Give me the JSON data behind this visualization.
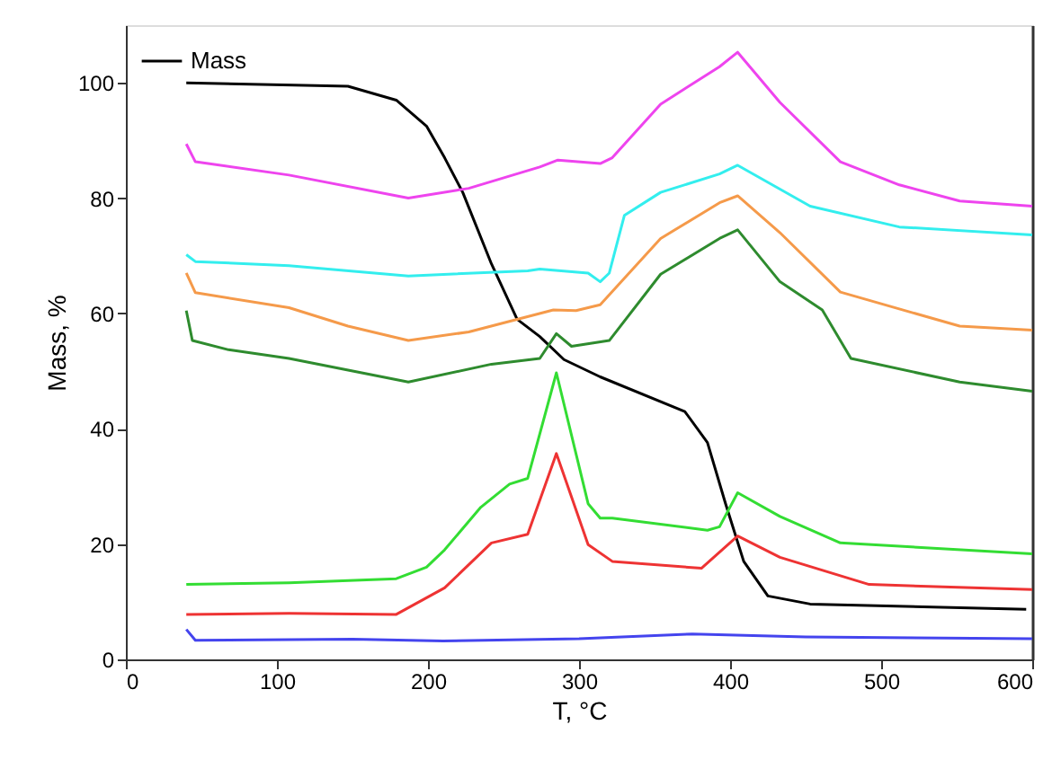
{
  "chart_data": {
    "type": "line",
    "xlabel": "T, °C",
    "ylabel": "Mass, %",
    "xlim": [
      0,
      600
    ],
    "xticks": [
      0,
      100,
      200,
      300,
      400,
      500,
      600
    ],
    "ylim": [
      0,
      110
    ],
    "yticks": [
      0,
      20,
      40,
      60,
      80,
      100
    ],
    "grid": false,
    "legend": "top left",
    "marker": "none",
    "line_style": "solid",
    "series": [
      {
        "name": "Mass",
        "color": "#000000",
        "x": [
          40,
          147,
          179,
          199,
          211,
          223,
          242,
          259,
          274,
          290,
          314,
          370,
          385,
          397,
          409,
          425,
          453,
          596
        ],
        "values": [
          100,
          99.4,
          97,
          92.5,
          87,
          81,
          68.6,
          59,
          56,
          52,
          49,
          43,
          37.6,
          27,
          17,
          11,
          9.6,
          8.7
        ]
      },
      {
        "color": "#ee44ee",
        "x": [
          40,
          46,
          108,
          187,
          227,
          274,
          286,
          314,
          322,
          354,
          393,
          405,
          433,
          473,
          512,
          552,
          600
        ],
        "values": [
          89.4,
          86.3,
          84,
          80,
          81.7,
          85.4,
          86.6,
          86,
          87,
          96.3,
          102.8,
          105.3,
          96.6,
          86.3,
          82.3,
          79.5,
          78.6
        ]
      },
      {
        "color": "#33eeee",
        "x": [
          40,
          46,
          108,
          187,
          266,
          274,
          306,
          314,
          320,
          330,
          354,
          393,
          405,
          453,
          512,
          600
        ],
        "values": [
          70.2,
          69,
          68.3,
          66.5,
          67.4,
          67.7,
          67,
          65.5,
          67,
          77,
          81,
          84.2,
          85.7,
          78.6,
          75,
          73.6
        ]
      },
      {
        "color": "#f59a4a",
        "x": [
          40,
          46,
          108,
          147,
          187,
          227,
          283,
          298,
          314,
          354,
          393,
          405,
          433,
          473,
          552,
          600
        ],
        "values": [
          67,
          63.6,
          61,
          57.8,
          55.3,
          56.8,
          60.6,
          60.5,
          61.5,
          73,
          79.2,
          80.4,
          74,
          63.7,
          57.8,
          57.1
        ]
      },
      {
        "color": "#2e8b2e",
        "x": [
          40,
          44,
          68,
          108,
          187,
          242,
          274,
          285,
          295,
          320,
          354,
          393,
          405,
          433,
          461,
          480,
          552,
          600
        ],
        "values": [
          60.5,
          55.3,
          53.7,
          52.2,
          48.1,
          51.2,
          52.2,
          56.5,
          54.3,
          55.3,
          66.8,
          73,
          74.5,
          65.5,
          60.6,
          52.2,
          48.1,
          46.5
        ]
      },
      {
        "color": "#33dd33",
        "x": [
          40,
          108,
          179,
          199,
          211,
          235,
          254,
          266,
          285,
          306,
          314,
          322,
          385,
          393,
          405,
          433,
          473,
          600
        ],
        "values": [
          13,
          13.3,
          14,
          16,
          19,
          26.4,
          30.4,
          31.4,
          49.7,
          27,
          24.5,
          24.5,
          22.4,
          23,
          28.9,
          24.8,
          20.2,
          18.3
        ]
      },
      {
        "color": "#ee3333",
        "x": [
          40,
          108,
          179,
          211,
          242,
          266,
          285,
          306,
          322,
          381,
          405,
          433,
          492,
          600
        ],
        "values": [
          7.8,
          8,
          7.8,
          12.4,
          20.2,
          21.7,
          35.7,
          19.9,
          17,
          15.8,
          21.4,
          17.7,
          13,
          12.1
        ]
      },
      {
        "color": "#4444ee",
        "x": [
          40,
          46,
          150,
          210,
          300,
          375,
          450,
          600
        ],
        "values": [
          5.2,
          3.3,
          3.5,
          3.2,
          3.6,
          4.4,
          3.9,
          3.6
        ]
      }
    ]
  }
}
